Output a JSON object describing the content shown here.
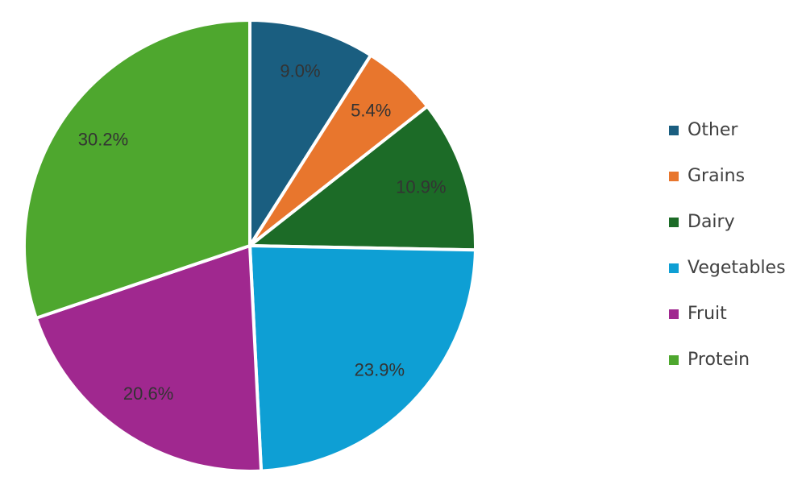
{
  "chart_data": {
    "type": "pie",
    "categories": [
      "Other",
      "Grains",
      "Dairy",
      "Vegetables",
      "Fruit",
      "Protein"
    ],
    "values": [
      9.0,
      5.4,
      10.9,
      23.9,
      20.6,
      30.2
    ],
    "value_labels": [
      "9.0%",
      "5.4%",
      "10.9%",
      "23.9%",
      "20.6%",
      "30.2%"
    ],
    "colors": [
      "#1a5e80",
      "#e8762d",
      "#1c6b27",
      "#0e9fd4",
      "#a0288f",
      "#4ea72e"
    ],
    "legend": "right"
  }
}
